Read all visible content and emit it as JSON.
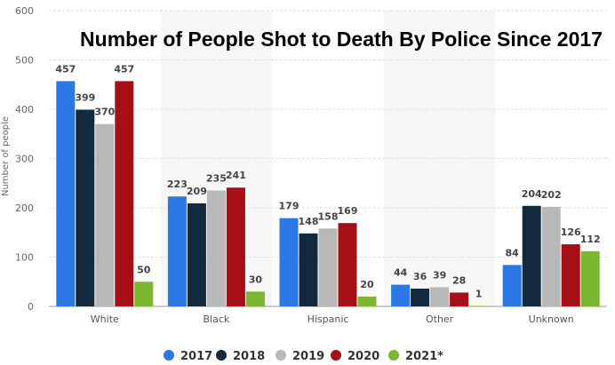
{
  "chart_data": {
    "type": "bar",
    "title": "Number of People Shot to Death By Police Since 2017",
    "ylabel": "Number of people",
    "xlabel": "",
    "ylim": [
      0,
      600
    ],
    "yticks": [
      0,
      100,
      200,
      300,
      400,
      500,
      600
    ],
    "grid": true,
    "legend_position": "bottom",
    "categories": [
      "White",
      "Black",
      "Hispanic",
      "Other",
      "Unknown"
    ],
    "series": [
      {
        "name": "2017",
        "color": "#2b78e4",
        "values": [
          457,
          223,
          179,
          44,
          84
        ]
      },
      {
        "name": "2018",
        "color": "#13293d",
        "values": [
          399,
          209,
          148,
          36,
          204
        ]
      },
      {
        "name": "2019",
        "color": "#b8b8b8",
        "values": [
          370,
          235,
          158,
          39,
          202
        ]
      },
      {
        "name": "2020",
        "color": "#a50f15",
        "values": [
          457,
          241,
          169,
          28,
          126
        ]
      },
      {
        "name": "2021*",
        "color": "#7cb82f",
        "values": [
          50,
          30,
          20,
          1,
          112
        ]
      }
    ]
  }
}
